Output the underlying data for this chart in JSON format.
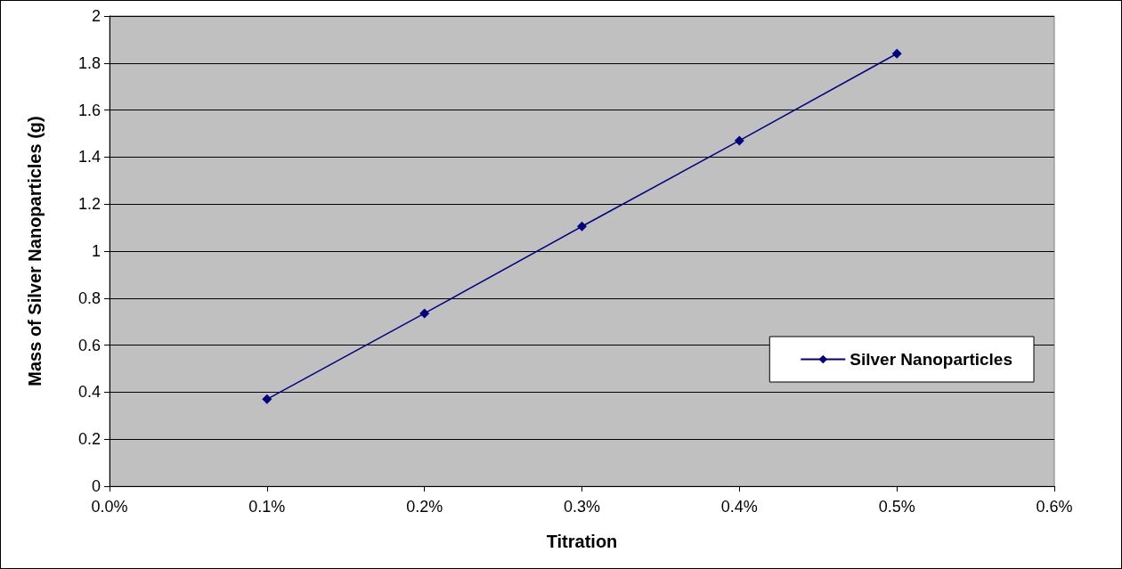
{
  "chart_data": {
    "type": "line",
    "xlabel": "Titration",
    "ylabel": "Mass of Silver Nanoparticles (g)",
    "x": [
      0.1,
      0.2,
      0.3,
      0.4,
      0.5
    ],
    "series": [
      {
        "name": "Silver Nanoparticles",
        "color": "#000080",
        "values": [
          0.37,
          0.735,
          1.105,
          1.47,
          1.84
        ]
      }
    ],
    "xlim": [
      0,
      0.6
    ],
    "xticks": [
      {
        "value": 0,
        "label": "0.0%"
      },
      {
        "value": 0.1,
        "label": "0.1%"
      },
      {
        "value": 0.2,
        "label": "0.2%"
      },
      {
        "value": 0.3,
        "label": "0.3%"
      },
      {
        "value": 0.4,
        "label": "0.4%"
      },
      {
        "value": 0.5,
        "label": "0.5%"
      },
      {
        "value": 0.6,
        "label": "0.6%"
      }
    ],
    "ylim": [
      0,
      2
    ],
    "yticks": [
      0,
      0.2,
      0.4,
      0.6,
      0.8,
      1,
      1.2,
      1.4,
      1.6,
      1.8,
      2
    ],
    "grid": "y",
    "legend": "right",
    "marker": "diamond",
    "line_style": "solid"
  }
}
